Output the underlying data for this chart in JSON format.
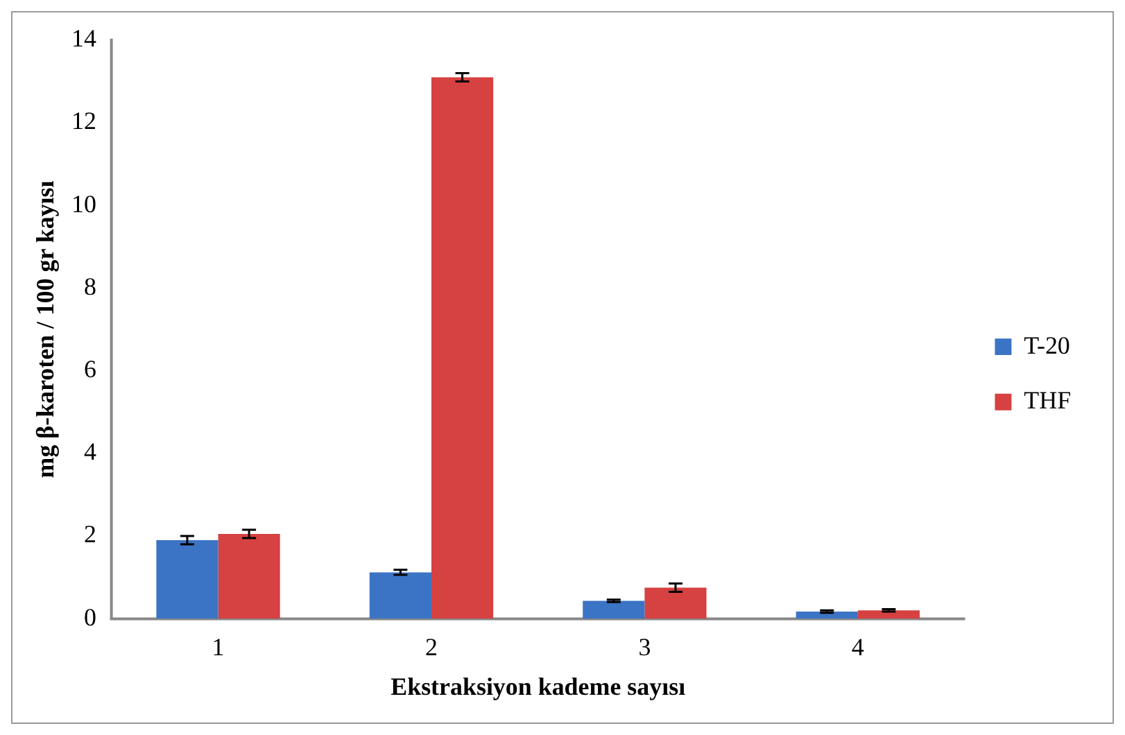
{
  "chart_data": {
    "type": "bar",
    "xlabel": "Ekstraksiyon kademe sayısı",
    "ylabel": "mg β-karoten / 100 gr kayısı",
    "categories": [
      "1",
      "2",
      "3",
      "4"
    ],
    "series": [
      {
        "name": "T-20",
        "color": "#3b74c4",
        "values": [
          1.9,
          1.12,
          0.43,
          0.17
        ],
        "errors": [
          0.1,
          0.06,
          0.03,
          0.03
        ]
      },
      {
        "name": "THF",
        "color": "#d64141",
        "values": [
          2.05,
          13.1,
          0.75,
          0.2
        ],
        "errors": [
          0.1,
          0.1,
          0.1,
          0.03
        ]
      }
    ],
    "ylim": [
      0,
      14
    ],
    "yticks": [
      0,
      2,
      4,
      6,
      8,
      10,
      12,
      14
    ],
    "grid": false,
    "legend": "right"
  }
}
